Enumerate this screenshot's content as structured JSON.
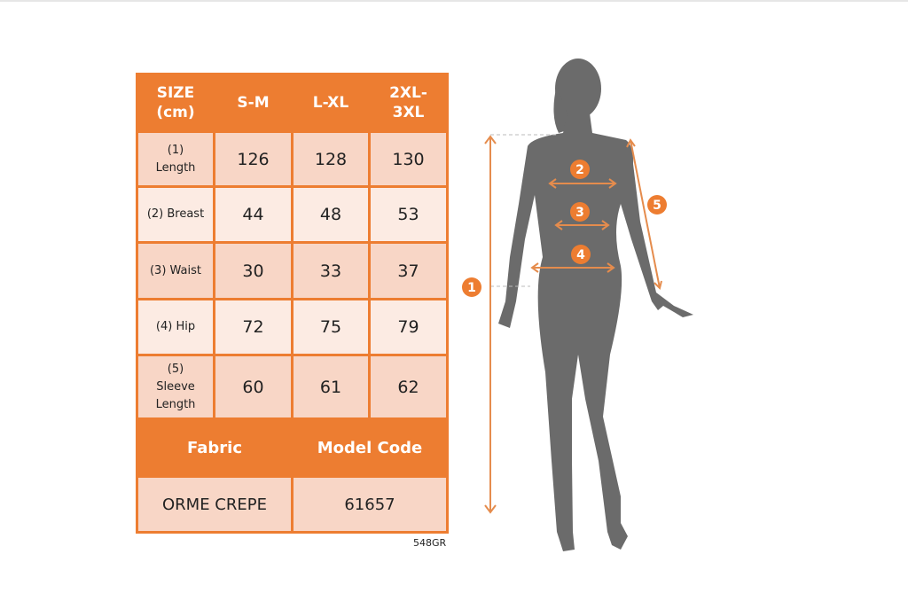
{
  "table": {
    "header": [
      "SIZE\n(cm)",
      "S-M",
      "L-XL",
      "2XL-\n3XL"
    ],
    "rows": [
      {
        "label": "(1)\nLength",
        "values": [
          "126",
          "128",
          "130"
        ]
      },
      {
        "label": "(2) Breast",
        "values": [
          "44",
          "48",
          "53"
        ]
      },
      {
        "label": "(3) Waist",
        "values": [
          "30",
          "33",
          "37"
        ]
      },
      {
        "label": "(4) Hip",
        "values": [
          "72",
          "75",
          "79"
        ]
      },
      {
        "label": "(5)\nSleeve\nLength",
        "values": [
          "60",
          "61",
          "62"
        ]
      }
    ],
    "fabric_label": "Fabric",
    "model_code_label": "Model Code",
    "fabric_value": "ORME CREPE",
    "model_code_value": "61657"
  },
  "product_code": "548GR",
  "markers": [
    "1",
    "2",
    "3",
    "4",
    "5"
  ],
  "colors": {
    "accent": "#ED7D31",
    "cell_dark": "#F8D6C6",
    "cell_light": "#FCEBE3",
    "silhouette": "#6b6b6b"
  }
}
